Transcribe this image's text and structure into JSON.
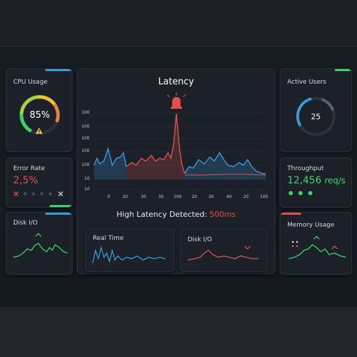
{
  "colors": {
    "green": "#3fd26b",
    "red": "#e0504b",
    "blue": "#3a9ad9",
    "yellow": "#f2c230",
    "orange": "#e8823a"
  },
  "cpu": {
    "title": "CPU Usage",
    "value": "85%",
    "percent": 85,
    "warning_icon": "warning-icon"
  },
  "error_rate": {
    "title": "Error Rate",
    "value": "2,5%"
  },
  "disk_left": {
    "title": "Disk I/O"
  },
  "latency": {
    "title": "Latency",
    "alert_icon": "siren-icon",
    "y_ticks": [
      "100",
      "100",
      "100",
      "100",
      "100",
      "10",
      "10"
    ],
    "x_ticks": [
      "0",
      "20",
      "30",
      "30",
      "100",
      "20",
      "30",
      "60",
      "20",
      "100"
    ],
    "status_prefix": "High Latency Detected:",
    "status_value": "500ms"
  },
  "real_time": {
    "title": "Real Time"
  },
  "disk_center": {
    "title": "Disk I/O"
  },
  "active_users": {
    "title": "Active Users",
    "value": "25"
  },
  "throughput": {
    "title": "Throughput",
    "value": "12,456",
    "unit": "req/s"
  },
  "memory": {
    "title": "Memory Usage"
  }
}
